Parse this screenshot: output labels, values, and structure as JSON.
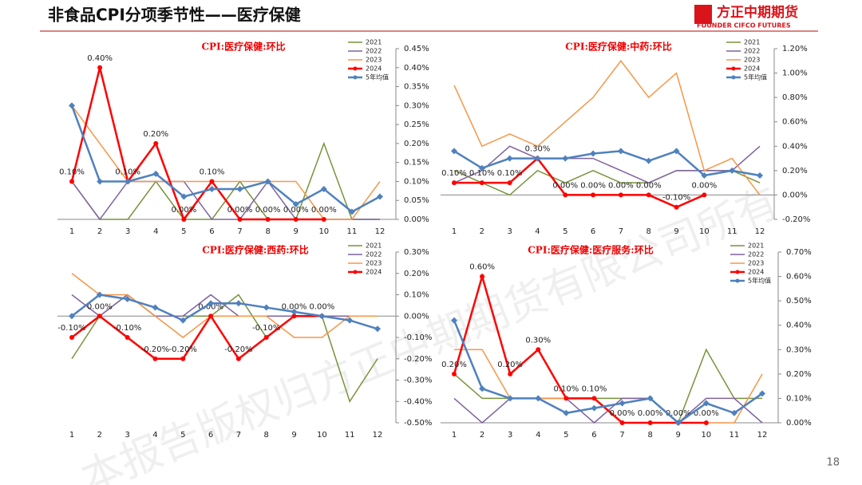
{
  "header": {
    "title": "非食品CPI分项季节性——医疗保健",
    "logo": "方正中期期货",
    "logo_en": "FOUNDER CIFCO FUTURES",
    "page": "18",
    "watermark": "本报告版权归方正中期期货有限公司所有"
  },
  "chart_data": [
    {
      "type": "line",
      "title": "CPI:医疗保健:环比",
      "categories": [
        1,
        2,
        3,
        4,
        5,
        6,
        7,
        8,
        9,
        10,
        11,
        12
      ],
      "ylim": [
        0,
        0.45
      ],
      "yticks": [
        {
          "value": 0,
          "label": "0.00%"
        },
        {
          "value": 0.05,
          "label": "0.05%"
        },
        {
          "value": 0.1,
          "label": "0.10%"
        },
        {
          "value": 0.15,
          "label": "0.15%"
        },
        {
          "value": 0.2,
          "label": "0.20%"
        },
        {
          "value": 0.25,
          "label": "0.25%"
        },
        {
          "value": 0.3,
          "label": "0.30%"
        },
        {
          "value": 0.35,
          "label": "0.35%"
        },
        {
          "value": 0.4,
          "label": "0.40%"
        },
        {
          "value": 0.45,
          "label": "0.45%"
        }
      ],
      "series": [
        {
          "name": "2021",
          "color": "#77933c",
          "values": [
            0.1,
            0,
            0,
            0.1,
            0,
            0,
            0.1,
            0,
            0,
            0.2,
            0,
            0
          ]
        },
        {
          "name": "2022",
          "color": "#7f63a1",
          "values": [
            0.1,
            0,
            0.1,
            0.1,
            0.1,
            0,
            0,
            0.1,
            0,
            0,
            0,
            0
          ]
        },
        {
          "name": "2023",
          "color": "#f79646",
          "values": [
            0.3,
            0.2,
            0.1,
            0.1,
            0.1,
            0.1,
            0.1,
            0.1,
            0.1,
            0,
            0,
            0.1
          ]
        },
        {
          "name": "2024",
          "color": "#ff0000",
          "marker": "circle",
          "values": [
            0.1,
            0.4,
            0.1,
            0.2,
            0,
            0.1,
            0,
            0,
            0,
            0,
            null,
            null
          ],
          "value_labels": [
            "0.10%",
            "0.40%",
            "0.10%",
            "0.20%",
            "0.00%",
            "0.10%",
            "0.00%",
            "0.00%",
            "0.00%",
            "0.00%",
            null,
            null
          ]
        },
        {
          "name": "5年均值",
          "color": "#4f81bd",
          "marker": "diamond",
          "values": [
            0.3,
            0.1,
            0.1,
            0.12,
            0.06,
            0.08,
            0.08,
            0.1,
            0.04,
            0.08,
            0.02,
            0.06
          ]
        }
      ]
    },
    {
      "type": "line",
      "title": "CPI:医疗保健:中药:环比",
      "categories": [
        1,
        2,
        3,
        4,
        5,
        6,
        7,
        8,
        9,
        10,
        11,
        12
      ],
      "ylim": [
        -0.2,
        1.2
      ],
      "yticks": [
        {
          "value": -0.2,
          "label": "-0.20%"
        },
        {
          "value": 0,
          "label": "0.00%"
        },
        {
          "value": 0.2,
          "label": "0.20%"
        },
        {
          "value": 0.4,
          "label": "0.40%"
        },
        {
          "value": 0.6,
          "label": "0.60%"
        },
        {
          "value": 0.8,
          "label": "0.80%"
        },
        {
          "value": 1,
          "label": "1.00%"
        },
        {
          "value": 1.2,
          "label": "1.20%"
        }
      ],
      "series": [
        {
          "name": "2021",
          "color": "#77933c",
          "values": [
            0.2,
            0.1,
            0,
            0.2,
            0.1,
            0.2,
            0.1,
            0.1,
            0.2,
            0.2,
            0.2,
            0.1
          ]
        },
        {
          "name": "2022",
          "color": "#7f63a1",
          "values": [
            0.1,
            0.2,
            0.4,
            0.3,
            0.3,
            0.3,
            0.2,
            0.1,
            0.2,
            0.2,
            0.2,
            0.4
          ]
        },
        {
          "name": "2023",
          "color": "#f79646",
          "values": [
            0.9,
            0.4,
            0.5,
            0.4,
            0.6,
            0.8,
            1.1,
            0.8,
            1,
            0.2,
            0.3,
            0
          ]
        },
        {
          "name": "2024",
          "color": "#ff0000",
          "marker": "circle",
          "values": [
            0.1,
            0.1,
            0.1,
            0.3,
            0,
            0,
            0,
            0,
            -0.1,
            0,
            null,
            null
          ],
          "value_labels": [
            "0.10%",
            "0.10%",
            "0.10%",
            "0.30%",
            "0.00%",
            "0.00%",
            "0.00%",
            "0.00%",
            "-0.10%",
            "0.00%",
            null,
            null
          ]
        },
        {
          "name": "5年均值",
          "color": "#4f81bd",
          "marker": "diamond",
          "values": [
            0.36,
            0.22,
            0.3,
            0.3,
            0.3,
            0.34,
            0.36,
            0.28,
            0.36,
            0.16,
            0.2,
            0.16
          ]
        }
      ]
    },
    {
      "type": "line",
      "title": "CPI:医疗保健:西药:环比",
      "categories": [
        1,
        2,
        3,
        4,
        5,
        6,
        7,
        8,
        9,
        10,
        11,
        12
      ],
      "ylim": [
        -0.5,
        0.3
      ],
      "yticks": [
        {
          "value": -0.5,
          "label": "-0.50%"
        },
        {
          "value": -0.4,
          "label": "-0.40%"
        },
        {
          "value": -0.3,
          "label": "-0.30%"
        },
        {
          "value": -0.2,
          "label": "-0.20%"
        },
        {
          "value": -0.1,
          "label": "-0.10%"
        },
        {
          "value": 0,
          "label": "0.00%"
        },
        {
          "value": 0.1,
          "label": "0.10%"
        },
        {
          "value": 0.2,
          "label": "0.20%"
        },
        {
          "value": 0.3,
          "label": "0.30%"
        }
      ],
      "series": [
        {
          "name": "2021",
          "color": "#77933c",
          "values": [
            -0.2,
            0,
            0.1,
            0,
            0,
            0,
            0.1,
            -0.1,
            0,
            0,
            -0.4,
            -0.2
          ]
        },
        {
          "name": "2022",
          "color": "#7f63a1",
          "values": [
            0.1,
            0,
            0.1,
            0,
            0,
            0.1,
            0,
            0,
            0,
            0,
            0,
            0
          ]
        },
        {
          "name": "2023",
          "color": "#f79646",
          "values": [
            0.2,
            0.1,
            0.1,
            0,
            -0.1,
            0,
            0,
            0,
            -0.1,
            -0.1,
            0,
            0
          ]
        },
        {
          "name": "2024",
          "color": "#ff0000",
          "marker": "circle",
          "values": [
            -0.1,
            0,
            -0.1,
            -0.2,
            -0.2,
            0,
            -0.2,
            -0.1,
            0,
            0,
            null,
            null
          ],
          "value_labels": [
            "-0.10%",
            "0.00%",
            "-0.10%",
            "-0.20%",
            "-0.20%",
            "0.00%",
            "-0.20%",
            "-0.10%",
            "0.00%",
            "0.00%",
            null,
            null
          ]
        },
        {
          "color": "#4f81bd",
          "marker": "diamond",
          "values": [
            0,
            0.1,
            0.08,
            0.04,
            -0.02,
            0.06,
            0.06,
            0.04,
            0.02,
            0,
            -0.02,
            -0.06
          ]
        }
      ]
    },
    {
      "type": "line",
      "title": "CPI:医疗保健:医疗服务:环比",
      "categories": [
        1,
        2,
        3,
        4,
        5,
        6,
        7,
        8,
        9,
        10,
        11,
        12
      ],
      "ylim": [
        0,
        0.7
      ],
      "yticks": [
        {
          "value": 0,
          "label": "0.00%"
        },
        {
          "value": 0.1,
          "label": "0.10%"
        },
        {
          "value": 0.2,
          "label": "0.20%"
        },
        {
          "value": 0.3,
          "label": "0.30%"
        },
        {
          "value": 0.4,
          "label": "0.40%"
        },
        {
          "value": 0.5,
          "label": "0.50%"
        },
        {
          "value": 0.6,
          "label": "0.60%"
        },
        {
          "value": 0.7,
          "label": "0.70%"
        }
      ],
      "series": [
        {
          "name": "2021",
          "color": "#77933c",
          "values": [
            0.2,
            0.1,
            0.1,
            0.1,
            0.1,
            0.1,
            0.1,
            0.1,
            0,
            0.3,
            0.1,
            0.1
          ]
        },
        {
          "name": "2022",
          "color": "#7f63a1",
          "values": [
            0.1,
            0,
            0.1,
            0.1,
            0.1,
            0,
            0.1,
            0.1,
            0,
            0.1,
            0.1,
            0
          ]
        },
        {
          "name": "2023",
          "color": "#f79646",
          "values": [
            0.3,
            0.3,
            0.1,
            0.1,
            0.1,
            0.1,
            0,
            0,
            0,
            0,
            0,
            0.2
          ]
        },
        {
          "name": "2024",
          "color": "#ff0000",
          "marker": "circle",
          "values": [
            0.2,
            0.6,
            0.2,
            0.3,
            0.1,
            0.1,
            0,
            0,
            0,
            0,
            null,
            null
          ],
          "value_labels": [
            "0.20%",
            "0.60%",
            "0.20%",
            "0.30%",
            "0.10%",
            "0.10%",
            "0.00%",
            "0.00%",
            "0.00%",
            "0.00%",
            null,
            null
          ]
        },
        {
          "name": "5年均值",
          "color": "#4f81bd",
          "marker": "diamond",
          "values": [
            0.42,
            0.14,
            0.1,
            0.1,
            0.04,
            0.06,
            0.08,
            0.1,
            0,
            0.08,
            0.04,
            0.12
          ]
        }
      ]
    }
  ]
}
